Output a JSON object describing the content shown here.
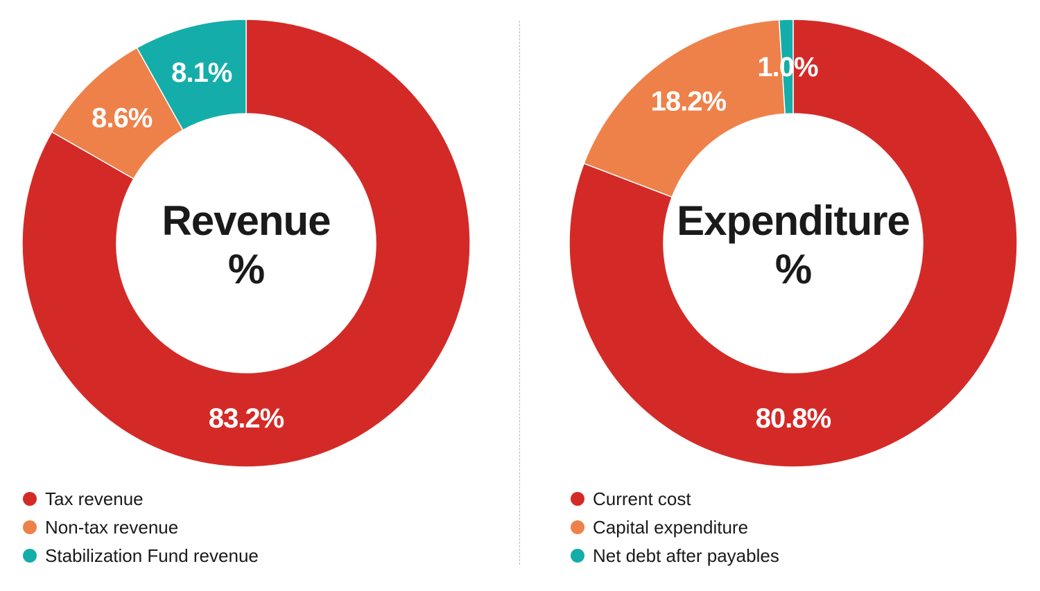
{
  "chart_data": [
    {
      "type": "pie",
      "variant": "donut",
      "title": "Revenue",
      "unit": "%",
      "categories": [
        "Tax revenue",
        "Non-tax revenue",
        "Stabilization Fund revenue"
      ],
      "values": [
        83.2,
        8.6,
        8.1
      ],
      "labels": [
        "83.2%",
        "8.6%",
        "8.1%"
      ],
      "colors": [
        "#d42a27",
        "#ee8149",
        "#15ada9"
      ],
      "legend": "bottom-left"
    },
    {
      "type": "pie",
      "variant": "donut",
      "title": "Expenditure",
      "unit": "%",
      "categories": [
        "Current cost",
        "Capital expenditure",
        "Net debt after payables"
      ],
      "values": [
        80.8,
        18.2,
        1.0
      ],
      "labels": [
        "80.8%",
        "18.2%",
        "1.0%"
      ],
      "colors": [
        "#d42a27",
        "#ee8149",
        "#15ada9"
      ],
      "legend": "bottom-left"
    }
  ]
}
